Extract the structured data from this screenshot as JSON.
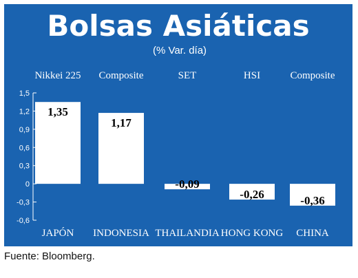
{
  "chart_data": {
    "type": "bar",
    "title": "Bolsas Asiáticas",
    "subtitle": "(% Var. día)",
    "categories": [
      "JAPÓN",
      "INDONESIA",
      "THAILANDIA",
      "HONG KONG",
      "CHINA"
    ],
    "index_names": [
      "Nikkei 225",
      "Composite",
      "SET",
      "HSI",
      "Composite"
    ],
    "values": [
      1.35,
      1.17,
      -0.09,
      -0.26,
      -0.36
    ],
    "value_labels": [
      "1,35",
      "1,17",
      "-0,09",
      "-0,26",
      "-0,36"
    ],
    "ylim": [
      -0.6,
      1.5
    ],
    "yticks": [
      1.5,
      1.2,
      0.9,
      0.6,
      0.3,
      0,
      -0.3,
      -0.6
    ],
    "ytick_labels": [
      "1,5",
      "1,2",
      "0,9",
      "0,6",
      "0,3",
      "0",
      "-0,3",
      "-0,6"
    ],
    "grid": false,
    "colors": {
      "background": "#1a63b0",
      "bar": "#ffffff",
      "text": "#ffffff",
      "label": "#000000"
    }
  },
  "source": "Fuente: Bloomberg."
}
